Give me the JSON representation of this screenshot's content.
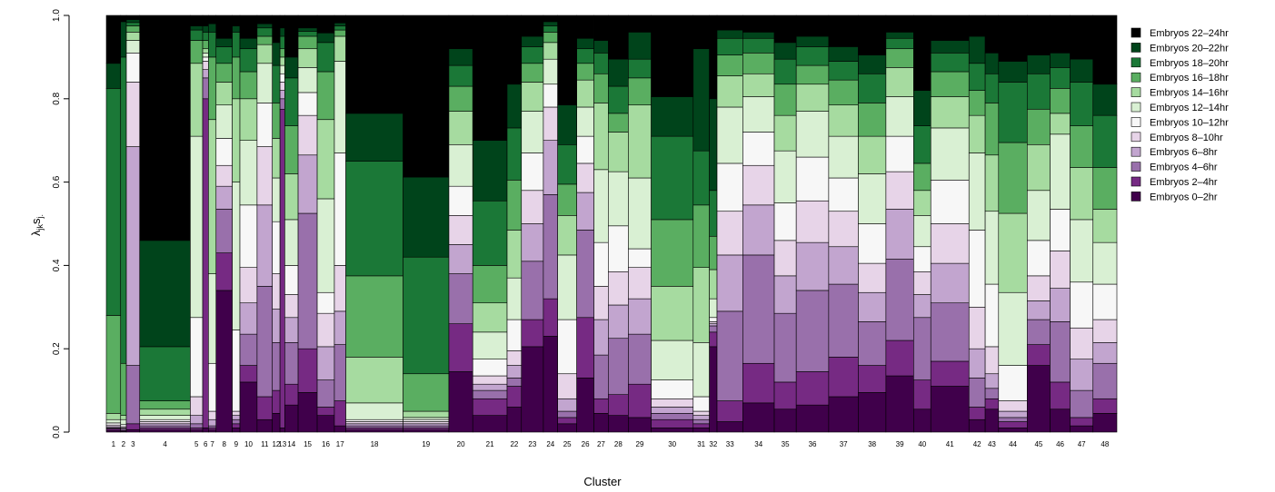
{
  "chart_data": {
    "type": "bar",
    "variant": "stacked-variable-width",
    "xlabel": "Cluster",
    "ylabel_main": "λ",
    "ylabel_sub1": "jk",
    "ylabel_main2": "s",
    "ylabel_sub2": "j.",
    "ylim": [
      0,
      1
    ],
    "yticks": [
      "0.0",
      "0.2",
      "0.4",
      "0.6",
      "0.8",
      "1.0"
    ],
    "legend_position": "top-right",
    "series": [
      {
        "name": "Embryos 0–2hr",
        "color": "#40004b"
      },
      {
        "name": "Embryos 2–4hr",
        "color": "#762a83"
      },
      {
        "name": "Embryos 4–6hr",
        "color": "#9970ab"
      },
      {
        "name": "Embryos 6–8hr",
        "color": "#c2a5cf"
      },
      {
        "name": "Embryos 8–10hr",
        "color": "#e7d4e8"
      },
      {
        "name": "Embryos 10–12hr",
        "color": "#f7f7f7"
      },
      {
        "name": "Embryos 12–14hr",
        "color": "#d9f0d3"
      },
      {
        "name": "Embryos 14–16hr",
        "color": "#a6dba0"
      },
      {
        "name": "Embryos 16–18hr",
        "color": "#5aae61"
      },
      {
        "name": "Embryos 18–20hr",
        "color": "#1b7837"
      },
      {
        "name": "Embryos 20–22hr",
        "color": "#00441b"
      },
      {
        "name": "Embryos 22–24hr",
        "color": "#000000"
      }
    ],
    "clusters": [
      {
        "label": "1",
        "width": 1.5,
        "cum": [
          0.004,
          0.008,
          0.01,
          0.013,
          0.017,
          0.022,
          0.03,
          0.045,
          0.28,
          0.825,
          0.885,
          1.0
        ]
      },
      {
        "label": "2",
        "width": 0.6,
        "cum": [
          0.002,
          0.004,
          0.007,
          0.01,
          0.013,
          0.018,
          0.03,
          0.04,
          0.165,
          0.9,
          0.985,
          1.0
        ]
      },
      {
        "label": "3",
        "width": 1.4,
        "cum": [
          0.006,
          0.02,
          0.16,
          0.685,
          0.84,
          0.91,
          0.94,
          0.96,
          0.975,
          0.983,
          0.99,
          1.0
        ]
      },
      {
        "label": "4",
        "width": 5.3,
        "cum": [
          0.005,
          0.01,
          0.015,
          0.02,
          0.025,
          0.03,
          0.04,
          0.055,
          0.075,
          0.205,
          0.46,
          1.0
        ]
      },
      {
        "label": "5",
        "width": 1.3,
        "cum": [
          0.005,
          0.01,
          0.02,
          0.04,
          0.085,
          0.275,
          0.71,
          0.885,
          0.94,
          0.965,
          0.975,
          1.0
        ]
      },
      {
        "label": "6",
        "width": 0.6,
        "cum": [
          0.01,
          0.8,
          0.85,
          0.87,
          0.89,
          0.9,
          0.91,
          0.92,
          0.94,
          0.96,
          0.975,
          1.0
        ]
      },
      {
        "label": "7",
        "width": 0.8,
        "cum": [
          0.005,
          0.01,
          0.015,
          0.03,
          0.05,
          0.165,
          0.38,
          0.75,
          0.9,
          0.96,
          0.98,
          1.0
        ]
      },
      {
        "label": "8",
        "width": 1.7,
        "cum": [
          0.34,
          0.43,
          0.535,
          0.59,
          0.64,
          0.705,
          0.785,
          0.84,
          0.885,
          0.925,
          0.945,
          1.0
        ]
      },
      {
        "label": "9",
        "width": 0.8,
        "cum": [
          0.01,
          0.02,
          0.03,
          0.04,
          0.05,
          0.245,
          0.6,
          0.8,
          0.9,
          0.96,
          0.975,
          1.0
        ]
      },
      {
        "label": "10",
        "width": 1.8,
        "cum": [
          0.12,
          0.16,
          0.235,
          0.31,
          0.395,
          0.545,
          0.7,
          0.8,
          0.865,
          0.92,
          0.945,
          1.0
        ]
      },
      {
        "label": "11",
        "width": 1.6,
        "cum": [
          0.03,
          0.085,
          0.35,
          0.545,
          0.685,
          0.79,
          0.885,
          0.93,
          0.95,
          0.97,
          0.98,
          1.0
        ]
      },
      {
        "label": "12",
        "width": 0.8,
        "cum": [
          0.045,
          0.1,
          0.215,
          0.295,
          0.38,
          0.505,
          0.61,
          0.705,
          0.79,
          0.88,
          0.935,
          1.0
        ]
      },
      {
        "label": "13",
        "width": 0.5,
        "cum": [
          0.01,
          0.775,
          0.8,
          0.82,
          0.84,
          0.86,
          0.88,
          0.9,
          0.92,
          0.95,
          0.97,
          1.0
        ]
      },
      {
        "label": "14",
        "width": 1.4,
        "cum": [
          0.065,
          0.115,
          0.215,
          0.275,
          0.33,
          0.4,
          0.51,
          0.62,
          0.735,
          0.85,
          0.9,
          1.0
        ]
      },
      {
        "label": "15",
        "width": 2.0,
        "cum": [
          0.095,
          0.2,
          0.525,
          0.665,
          0.76,
          0.815,
          0.875,
          0.92,
          0.95,
          0.962,
          0.97,
          1.0
        ]
      },
      {
        "label": "16",
        "width": 1.8,
        "cum": [
          0.04,
          0.06,
          0.125,
          0.205,
          0.285,
          0.335,
          0.56,
          0.75,
          0.865,
          0.935,
          0.958,
          1.0
        ]
      },
      {
        "label": "17",
        "width": 1.2,
        "cum": [
          0.015,
          0.075,
          0.21,
          0.29,
          0.4,
          0.67,
          0.89,
          0.95,
          0.965,
          0.975,
          0.982,
          1.0
        ]
      },
      {
        "label": "18",
        "width": 6.0,
        "cum": [
          0.005,
          0.01,
          0.015,
          0.02,
          0.025,
          0.03,
          0.07,
          0.18,
          0.375,
          0.65,
          0.765,
          1.0
        ]
      },
      {
        "label": "19",
        "width": 4.8,
        "cum": [
          0.005,
          0.01,
          0.015,
          0.02,
          0.025,
          0.03,
          0.035,
          0.05,
          0.14,
          0.42,
          0.612,
          1.0
        ]
      },
      {
        "label": "20",
        "width": 2.5,
        "cum": [
          0.145,
          0.26,
          0.38,
          0.45,
          0.52,
          0.59,
          0.69,
          0.77,
          0.83,
          0.88,
          0.92,
          1.0
        ]
      },
      {
        "label": "21",
        "width": 3.6,
        "cum": [
          0.04,
          0.08,
          0.1,
          0.115,
          0.135,
          0.175,
          0.24,
          0.31,
          0.4,
          0.555,
          0.7,
          1.0
        ]
      },
      {
        "label": "22",
        "width": 1.5,
        "cum": [
          0.06,
          0.11,
          0.13,
          0.16,
          0.195,
          0.27,
          0.37,
          0.485,
          0.605,
          0.73,
          0.835,
          1.0
        ]
      },
      {
        "label": "23",
        "width": 2.3,
        "cum": [
          0.205,
          0.27,
          0.41,
          0.5,
          0.58,
          0.67,
          0.77,
          0.84,
          0.885,
          0.925,
          0.95,
          1.0
        ]
      },
      {
        "label": "24",
        "width": 1.5,
        "cum": [
          0.23,
          0.32,
          0.57,
          0.7,
          0.78,
          0.835,
          0.895,
          0.935,
          0.96,
          0.975,
          0.985,
          1.0
        ]
      },
      {
        "label": "25",
        "width": 2.0,
        "cum": [
          0.02,
          0.035,
          0.05,
          0.08,
          0.14,
          0.27,
          0.425,
          0.52,
          0.595,
          0.69,
          0.785,
          1.0
        ]
      },
      {
        "label": "26",
        "width": 1.8,
        "cum": [
          0.13,
          0.275,
          0.485,
          0.575,
          0.645,
          0.71,
          0.78,
          0.845,
          0.885,
          0.92,
          0.945,
          1.0
        ]
      },
      {
        "label": "27",
        "width": 1.5,
        "cum": [
          0.045,
          0.08,
          0.185,
          0.27,
          0.35,
          0.455,
          0.63,
          0.79,
          0.86,
          0.91,
          0.94,
          1.0
        ]
      },
      {
        "label": "28",
        "width": 2.1,
        "cum": [
          0.04,
          0.09,
          0.225,
          0.305,
          0.385,
          0.495,
          0.625,
          0.72,
          0.765,
          0.83,
          0.895,
          1.0
        ]
      },
      {
        "label": "29",
        "width": 2.4,
        "cum": [
          0.035,
          0.115,
          0.235,
          0.32,
          0.395,
          0.44,
          0.61,
          0.785,
          0.85,
          0.895,
          0.96,
          1.0
        ]
      },
      {
        "label": "30",
        "width": 4.4,
        "cum": [
          0.01,
          0.03,
          0.045,
          0.06,
          0.08,
          0.125,
          0.22,
          0.35,
          0.51,
          0.71,
          0.805,
          1.0
        ]
      },
      {
        "label": "31",
        "width": 1.7,
        "cum": [
          0.01,
          0.02,
          0.03,
          0.04,
          0.05,
          0.085,
          0.215,
          0.395,
          0.545,
          0.675,
          0.92,
          1.0
        ]
      },
      {
        "label": "32",
        "width": 0.8,
        "cum": [
          0.205,
          0.24,
          0.255,
          0.26,
          0.265,
          0.275,
          0.32,
          0.39,
          0.47,
          0.58,
          0.8,
          1.0
        ]
      },
      {
        "label": "33",
        "width": 2.7,
        "cum": [
          0.025,
          0.075,
          0.29,
          0.425,
          0.53,
          0.645,
          0.78,
          0.855,
          0.905,
          0.945,
          0.965,
          1.0
        ]
      },
      {
        "label": "34",
        "width": 3.3,
        "cum": [
          0.07,
          0.165,
          0.425,
          0.545,
          0.64,
          0.72,
          0.805,
          0.86,
          0.91,
          0.945,
          0.96,
          1.0
        ]
      },
      {
        "label": "35",
        "width": 2.3,
        "cum": [
          0.055,
          0.12,
          0.285,
          0.375,
          0.46,
          0.55,
          0.675,
          0.76,
          0.835,
          0.895,
          0.935,
          1.0
        ]
      },
      {
        "label": "36",
        "width": 3.4,
        "cum": [
          0.065,
          0.145,
          0.34,
          0.455,
          0.555,
          0.66,
          0.77,
          0.835,
          0.88,
          0.925,
          0.95,
          1.0
        ]
      },
      {
        "label": "37",
        "width": 3.1,
        "cum": [
          0.085,
          0.18,
          0.355,
          0.445,
          0.53,
          0.61,
          0.71,
          0.785,
          0.845,
          0.89,
          0.925,
          1.0
        ]
      },
      {
        "label": "38",
        "width": 2.9,
        "cum": [
          0.095,
          0.16,
          0.265,
          0.335,
          0.405,
          0.5,
          0.62,
          0.71,
          0.79,
          0.86,
          0.905,
          1.0
        ]
      },
      {
        "label": "39",
        "width": 2.9,
        "cum": [
          0.135,
          0.22,
          0.415,
          0.535,
          0.625,
          0.71,
          0.805,
          0.875,
          0.92,
          0.945,
          0.96,
          1.0
        ]
      },
      {
        "label": "40",
        "width": 1.8,
        "cum": [
          0.055,
          0.125,
          0.275,
          0.33,
          0.385,
          0.445,
          0.52,
          0.58,
          0.645,
          0.735,
          0.82,
          1.0
        ]
      },
      {
        "label": "41",
        "width": 4.0,
        "cum": [
          0.11,
          0.17,
          0.31,
          0.405,
          0.5,
          0.605,
          0.73,
          0.805,
          0.865,
          0.91,
          0.94,
          1.0
        ]
      },
      {
        "label": "42",
        "width": 1.7,
        "cum": [
          0.03,
          0.06,
          0.13,
          0.2,
          0.3,
          0.485,
          0.67,
          0.76,
          0.82,
          0.885,
          0.95,
          1.0
        ]
      },
      {
        "label": "43",
        "width": 1.4,
        "cum": [
          0.055,
          0.08,
          0.105,
          0.14,
          0.205,
          0.355,
          0.53,
          0.665,
          0.79,
          0.86,
          0.91,
          1.0
        ]
      },
      {
        "label": "44",
        "width": 3.0,
        "cum": [
          0.01,
          0.025,
          0.035,
          0.05,
          0.075,
          0.16,
          0.335,
          0.525,
          0.695,
          0.84,
          0.89,
          1.0
        ]
      },
      {
        "label": "45",
        "width": 2.4,
        "cum": [
          0.16,
          0.21,
          0.27,
          0.315,
          0.375,
          0.46,
          0.58,
          0.69,
          0.775,
          0.86,
          0.905,
          1.0
        ]
      },
      {
        "label": "46",
        "width": 2.1,
        "cum": [
          0.055,
          0.12,
          0.265,
          0.345,
          0.435,
          0.535,
          0.715,
          0.765,
          0.825,
          0.875,
          0.91,
          1.0
        ]
      },
      {
        "label": "47",
        "width": 2.4,
        "cum": [
          0.015,
          0.035,
          0.1,
          0.175,
          0.25,
          0.36,
          0.51,
          0.635,
          0.735,
          0.84,
          0.895,
          1.0
        ]
      },
      {
        "label": "48",
        "width": 2.5,
        "cum": [
          0.045,
          0.08,
          0.165,
          0.215,
          0.27,
          0.355,
          0.455,
          0.535,
          0.635,
          0.76,
          0.835,
          1.0
        ]
      }
    ]
  }
}
